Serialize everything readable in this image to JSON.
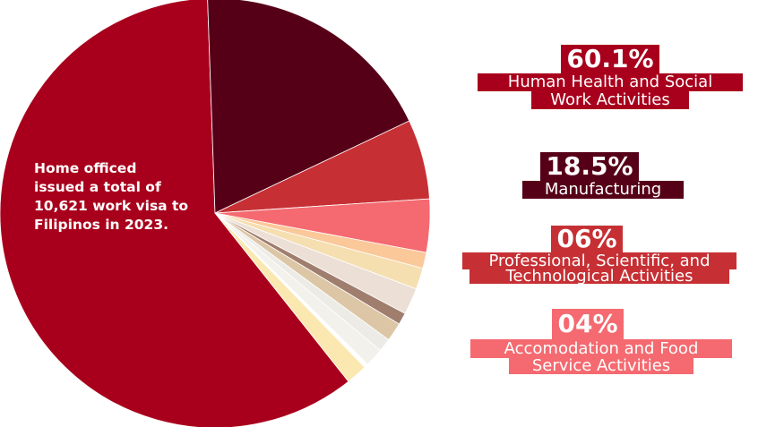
{
  "colors": {
    "crimson": "#a8001c",
    "maroon": "#560018",
    "red": "#c63034",
    "salmon": "#f46a70",
    "peach": "#fbc89a",
    "cream": "#f5deb0",
    "linen": "#ece0d6",
    "brown": "#a07e6e",
    "tan": "#dcc6a6",
    "lightgray": "#ecebe6",
    "paleyellow": "#fbe8b0"
  },
  "chart_data": {
    "type": "pie",
    "annotation_lines": [
      "Home officed",
      "issued a total of",
      "10,621 work visa to",
      "Filipinos in 2023."
    ],
    "slices": [
      {
        "label": "Human Health and Social Work Activities",
        "value": 60.1,
        "color": "#a8001c"
      },
      {
        "label": "Manufacturing",
        "value": 18.5,
        "color": "#560018"
      },
      {
        "label": "Professional, Scientific, and Technological Activities",
        "value": 6,
        "color": "#c63034"
      },
      {
        "label": "Accomodation and Food Service Activities",
        "value": 4,
        "color": "#f46a70"
      },
      {
        "label": "",
        "value": 1.2,
        "color": "#fbc89a"
      },
      {
        "label": "",
        "value": 1.6,
        "color": "#f5deb0"
      },
      {
        "label": "",
        "value": 2.0,
        "color": "#ece0d6"
      },
      {
        "label": "",
        "value": 0.9,
        "color": "#a07e6e"
      },
      {
        "label": "",
        "value": 1.4,
        "color": "#dcc6a6"
      },
      {
        "label": "",
        "value": 1.0,
        "color": "#ecebe6"
      },
      {
        "label": "",
        "value": 1.4,
        "color": "#f3f1ec"
      },
      {
        "label": "",
        "value": 0.3,
        "color": "#ffffff"
      },
      {
        "label": "",
        "value": 1.6,
        "color": "#fbe8b0"
      }
    ],
    "legend": [
      {
        "percent": "60.1%",
        "lines": [
          "Human Health and Social",
          "Work Activities"
        ]
      },
      {
        "percent": "18.5%",
        "lines": [
          "Manufacturing"
        ]
      },
      {
        "percent": "06%",
        "lines": [
          "Professional, Scientific, and",
          "Technological Activities"
        ]
      },
      {
        "percent": "04%",
        "lines": [
          "Accomodation and Food",
          "Service Activities"
        ]
      }
    ]
  }
}
